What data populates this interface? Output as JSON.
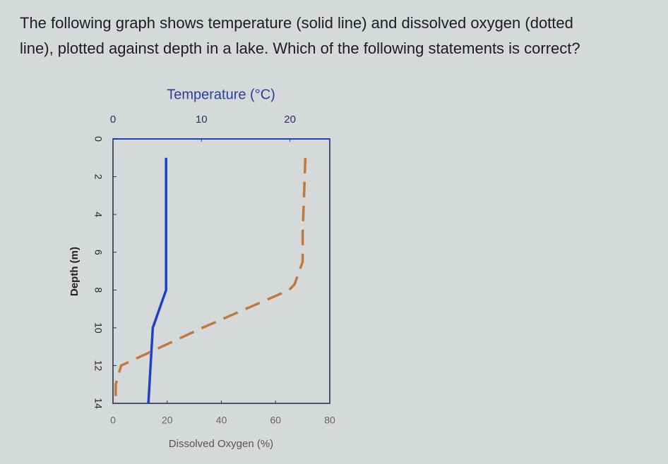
{
  "question": [
    "The following graph shows temperature (solid line) and dissolved oxygen (dotted",
    "line), plotted against depth in a lake. Which of the following statements is correct?"
  ],
  "chart_data": {
    "type": "line",
    "title": "Temperature (°C)",
    "xlabel": "Dissolved Oxygen (%)",
    "ylabel": "Depth (m)",
    "xlim": [
      0,
      80
    ],
    "xticks": [
      0,
      20,
      40,
      60,
      80
    ],
    "x2lim": [
      0,
      24.5
    ],
    "x2ticks": [
      0,
      10,
      20
    ],
    "ylim": [
      0,
      14
    ],
    "yticks": [
      0,
      2,
      4,
      6,
      8,
      10,
      12,
      14
    ],
    "y_inverted": true,
    "grid": false,
    "series": [
      {
        "color": "#1f3fc4",
        "axis": "x2",
        "dashed": false,
        "y": [
          1,
          8,
          10,
          14
        ],
        "values": [
          6,
          6,
          4.5,
          4
        ]
      },
      {
        "color": "#c07a3c",
        "axis": "x",
        "dashed": true,
        "y": [
          1,
          5,
          6.5,
          7.7,
          8,
          10,
          12,
          13,
          14
        ],
        "values": [
          71,
          70,
          70,
          67,
          65,
          33,
          3,
          1,
          1
        ]
      }
    ]
  }
}
